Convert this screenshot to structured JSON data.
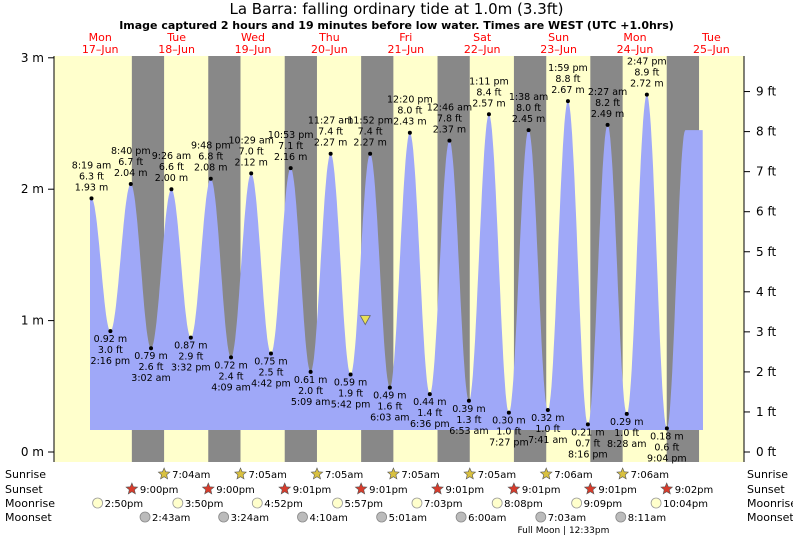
{
  "header": {
    "title": "La Barra: falling  ordinary tide at 1.0m (3.3ft)",
    "subtitle": "Image captured 2 hours and 19 minutes before low water. Times are WEST (UTC +1.0hrs)"
  },
  "chart_data": {
    "type": "area",
    "days": [
      {
        "day": "Mon",
        "date": "17–Jun"
      },
      {
        "day": "Tue",
        "date": "18–Jun"
      },
      {
        "day": "Wed",
        "date": "19–Jun"
      },
      {
        "day": "Thu",
        "date": "20–Jun"
      },
      {
        "day": "Fri",
        "date": "21–Jun"
      },
      {
        "day": "Sat",
        "date": "22–Jun"
      },
      {
        "day": "Sun",
        "date": "23–Jun"
      },
      {
        "day": "Mon",
        "date": "24–Jun"
      },
      {
        "day": "Tue",
        "date": "25–Jun"
      }
    ],
    "y_left": {
      "unit": "m",
      "ylim": [
        0,
        3
      ],
      "ticks": [
        "0 m",
        "1 m",
        "2 m",
        "3 m"
      ]
    },
    "y_right": {
      "unit": "ft",
      "ticks": [
        "0 ft",
        "1 ft",
        "2 ft",
        "3 ft",
        "4 ft",
        "5 ft",
        "6 ft",
        "7 ft",
        "8 ft",
        "9 ft"
      ]
    },
    "extrema": [
      {
        "type": "high",
        "time": "8:19 am",
        "m": "1.93 m",
        "ft": "6.3 ft",
        "day_time": 0.347,
        "height_m": 1.93
      },
      {
        "type": "low",
        "time": "2:16 pm",
        "m": "0.92 m",
        "ft": "3.0 ft",
        "day_time": 0.594,
        "height_m": 0.92
      },
      {
        "type": "high",
        "time": "8:40 pm",
        "m": "2.04 m",
        "ft": "6.7 ft",
        "day_time": 0.861,
        "height_m": 2.04
      },
      {
        "type": "low",
        "time": "3:02 am",
        "m": "0.79 m",
        "ft": "2.6 ft",
        "day_time": 1.126,
        "height_m": 0.79
      },
      {
        "type": "high",
        "time": "9:26 am",
        "m": "2.00 m",
        "ft": "6.6 ft",
        "day_time": 1.393,
        "height_m": 2.0
      },
      {
        "type": "low",
        "time": "3:32 pm",
        "m": "0.87 m",
        "ft": "2.9 ft",
        "day_time": 1.647,
        "height_m": 0.87
      },
      {
        "type": "high",
        "time": "9:48 pm",
        "m": "2.08 m",
        "ft": "6.8 ft",
        "day_time": 1.908,
        "height_m": 2.08
      },
      {
        "type": "low",
        "time": "4:09 am",
        "m": "0.72 m",
        "ft": "2.4 ft",
        "day_time": 2.173,
        "height_m": 0.72
      },
      {
        "type": "high",
        "time": "10:29 am",
        "m": "2.12 m",
        "ft": "7.0 ft",
        "day_time": 2.437,
        "height_m": 2.12
      },
      {
        "type": "low",
        "time": "4:42 pm",
        "m": "0.75 m",
        "ft": "2.5 ft",
        "day_time": 2.696,
        "height_m": 0.75
      },
      {
        "type": "high",
        "time": "10:53 pm",
        "m": "2.16 m",
        "ft": "7.1 ft",
        "day_time": 2.954,
        "height_m": 2.16
      },
      {
        "type": "low",
        "time": "5:09 am",
        "m": "0.61 m",
        "ft": "2.0 ft",
        "day_time": 3.215,
        "height_m": 0.61
      },
      {
        "type": "high",
        "time": "11:27 am",
        "m": "2.27 m",
        "ft": "7.4 ft",
        "day_time": 3.477,
        "height_m": 2.27
      },
      {
        "type": "low",
        "time": "5:42 pm",
        "m": "0.59 m",
        "ft": "1.9 ft",
        "day_time": 3.738,
        "height_m": 0.59
      },
      {
        "type": "high",
        "time": "11:52 pm",
        "m": "2.27 m",
        "ft": "7.4 ft",
        "day_time": 3.994,
        "height_m": 2.27
      },
      {
        "type": "low",
        "time": "6:03 am",
        "m": "0.49 m",
        "ft": "1.6 ft",
        "day_time": 4.252,
        "height_m": 0.49
      },
      {
        "type": "high",
        "time": "12:20 pm",
        "m": "2.43 m",
        "ft": "8.0 ft",
        "day_time": 4.514,
        "height_m": 2.43
      },
      {
        "type": "low",
        "time": "6:36 pm",
        "m": "0.44 m",
        "ft": "1.4 ft",
        "day_time": 4.775,
        "height_m": 0.44
      },
      {
        "type": "high",
        "time": "12:46 am",
        "m": "2.37 m",
        "ft": "7.8 ft",
        "day_time": 5.032,
        "height_m": 2.37
      },
      {
        "type": "low",
        "time": "6:53 am",
        "m": "0.39 m",
        "ft": "1.3 ft",
        "day_time": 5.287,
        "height_m": 0.39
      },
      {
        "type": "high",
        "time": "1:11 pm",
        "m": "2.57 m",
        "ft": "8.4 ft",
        "day_time": 5.549,
        "height_m": 2.57
      },
      {
        "type": "low",
        "time": "7:27 pm",
        "m": "0.30 m",
        "ft": "1.0 ft",
        "day_time": 5.81,
        "height_m": 0.3
      },
      {
        "type": "high",
        "time": "1:38 am",
        "m": "2.45 m",
        "ft": "8.0 ft",
        "day_time": 6.068,
        "height_m": 2.45
      },
      {
        "type": "low",
        "time": "7:41 am",
        "m": "0.32 m",
        "ft": "1.0 ft",
        "day_time": 6.32,
        "height_m": 0.32
      },
      {
        "type": "high",
        "time": "1:59 pm",
        "m": "2.67 m",
        "ft": "8.8 ft",
        "day_time": 6.583,
        "height_m": 2.67
      },
      {
        "type": "low",
        "time": "8:16 pm",
        "m": "0.21 m",
        "ft": "0.7 ft",
        "day_time": 6.844,
        "height_m": 0.21
      },
      {
        "type": "high",
        "time": "2:27 am",
        "m": "2.49 m",
        "ft": "8.2 ft",
        "day_time": 7.102,
        "height_m": 2.49
      },
      {
        "type": "low",
        "time": "8:28 am",
        "m": "0.29 m",
        "ft": "1.0 ft",
        "day_time": 7.353,
        "height_m": 0.29
      },
      {
        "type": "high",
        "time": "2:47 pm",
        "m": "2.72 m",
        "ft": "8.9 ft",
        "day_time": 7.616,
        "height_m": 2.72
      },
      {
        "type": "low",
        "time": "9:04 pm",
        "m": "0.18 m",
        "ft": "0.6 ft",
        "day_time": 7.878,
        "height_m": 0.18
      }
    ],
    "current_marker": {
      "day_time": 3.93,
      "height_m": 1.0
    },
    "night_bands": [
      {
        "start": 0.875,
        "end": 1.297
      },
      {
        "start": 1.875,
        "end": 2.297
      },
      {
        "start": 2.876,
        "end": 3.298
      },
      {
        "start": 3.876,
        "end": 4.298
      },
      {
        "start": 4.876,
        "end": 5.298
      },
      {
        "start": 5.876,
        "end": 6.299
      },
      {
        "start": 6.876,
        "end": 7.299
      },
      {
        "start": 7.876,
        "end": 8.299
      }
    ],
    "colors": {
      "daylight": "#ffffcc",
      "night": "#888888",
      "water": "#9fa8f8",
      "day_label": "#ff0000",
      "sun_star": "#d9c140",
      "sunset_star": "#d83b2b",
      "moonrise": "#ffffcc",
      "moonset": "#bbbbbb"
    }
  },
  "astro": {
    "row_labels": {
      "sunrise": "Sunrise",
      "sunset": "Sunset",
      "moonrise": "Moonrise",
      "moonset": "Moonset"
    },
    "sunrise": [
      {
        "day_time": 1.297,
        "label": "7:04am"
      },
      {
        "day_time": 2.297,
        "label": "7:05am"
      },
      {
        "day_time": 3.298,
        "label": "7:05am"
      },
      {
        "day_time": 4.298,
        "label": "7:05am"
      },
      {
        "day_time": 5.298,
        "label": "7:05am"
      },
      {
        "day_time": 6.299,
        "label": "7:06am"
      },
      {
        "day_time": 7.299,
        "label": "7:06am"
      }
    ],
    "sunset": [
      {
        "day_time": 0.875,
        "label": "9:00pm"
      },
      {
        "day_time": 1.875,
        "label": "9:00pm"
      },
      {
        "day_time": 2.876,
        "label": "9:01pm"
      },
      {
        "day_time": 3.876,
        "label": "9:01pm"
      },
      {
        "day_time": 4.876,
        "label": "9:01pm"
      },
      {
        "day_time": 5.876,
        "label": "9:01pm"
      },
      {
        "day_time": 6.876,
        "label": "9:01pm"
      },
      {
        "day_time": 7.876,
        "label": "9:02pm"
      }
    ],
    "moonrise": [
      {
        "day_time": 0.61,
        "label": "2:50pm"
      },
      {
        "day_time": 1.66,
        "label": "3:50pm"
      },
      {
        "day_time": 2.7,
        "label": "4:52pm"
      },
      {
        "day_time": 3.75,
        "label": "5:57pm"
      },
      {
        "day_time": 4.79,
        "label": "7:03pm"
      },
      {
        "day_time": 5.84,
        "label": "8:08pm"
      },
      {
        "day_time": 6.88,
        "label": "9:09pm"
      },
      {
        "day_time": 7.92,
        "label": "10:04pm"
      }
    ],
    "moonset": [
      {
        "day_time": 1.113,
        "label": "2:43am"
      },
      {
        "day_time": 2.142,
        "label": "3:24am"
      },
      {
        "day_time": 3.174,
        "label": "4:10am"
      },
      {
        "day_time": 4.21,
        "label": "5:01am"
      },
      {
        "day_time": 5.25,
        "label": "6:00am"
      },
      {
        "day_time": 6.293,
        "label": "7:03am"
      },
      {
        "day_time": 7.34,
        "label": "8:11am"
      }
    ],
    "full_moon": {
      "day_time": 6.524,
      "label": "Full Moon | 12:33pm"
    }
  }
}
